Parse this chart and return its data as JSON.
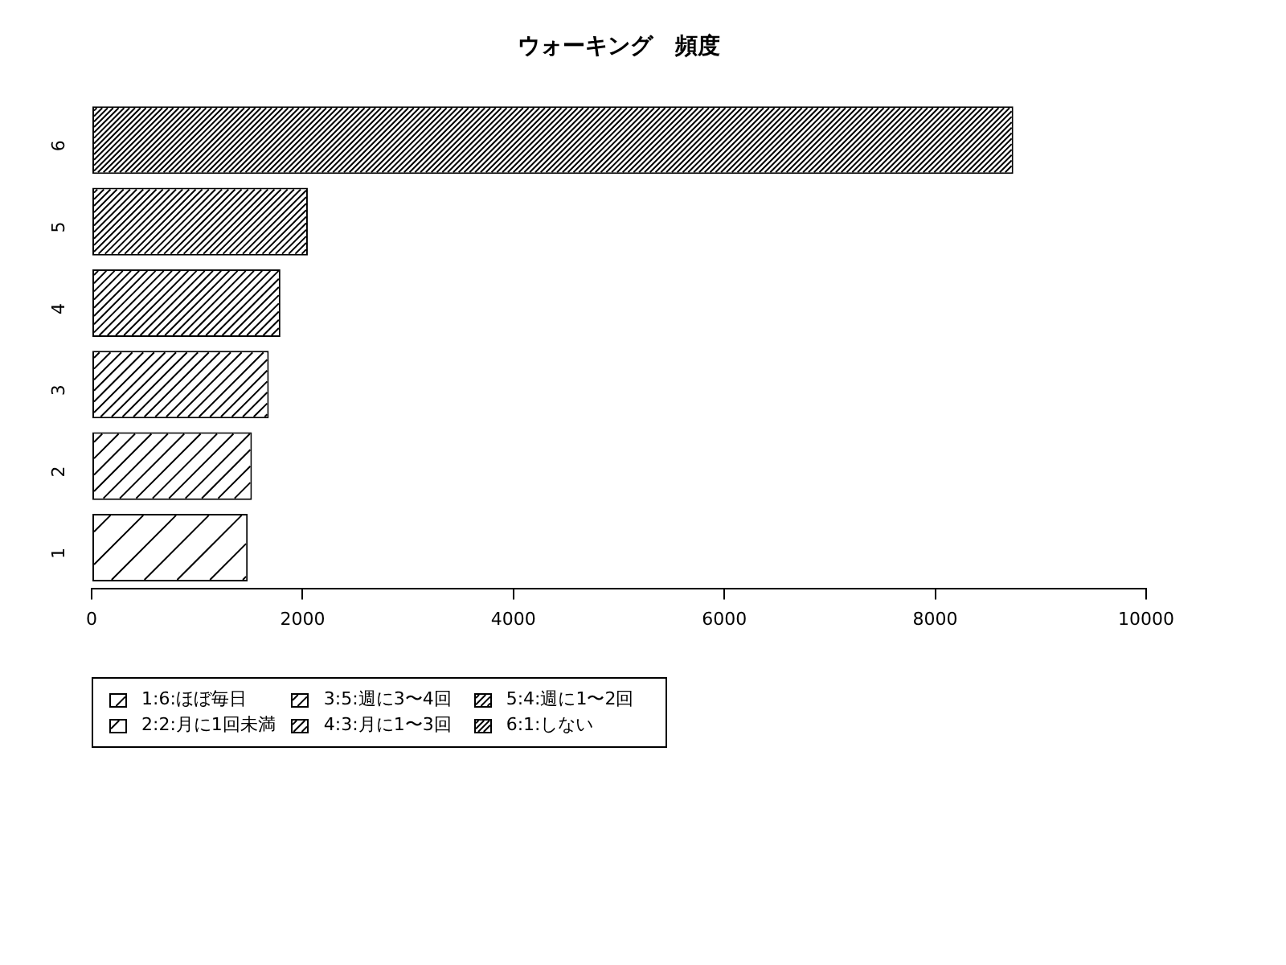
{
  "chart_data": {
    "type": "bar",
    "title": "ウォーキング　頻度",
    "orientation": "horizontal",
    "stacked": true,
    "categories": [
      "6",
      "5",
      "4",
      "3",
      "2",
      "1"
    ],
    "series": [
      {
        "name": "1:6:ほぼ毎日",
        "color": "#000000",
        "values": [
          null,
          null,
          null,
          null,
          null,
          1480
        ]
      },
      {
        "name": "2:2:月に1回未満",
        "color": "#000000",
        "values": [
          null,
          null,
          null,
          null,
          1520,
          null
        ]
      },
      {
        "name": "3:5:週に3〜4回",
        "color": "#000000",
        "values": [
          null,
          null,
          null,
          1680,
          null,
          null
        ]
      },
      {
        "name": "4:3:月に1〜3回",
        "color": "#000000",
        "values": [
          null,
          null,
          1790,
          null,
          null,
          null
        ]
      },
      {
        "name": "5:4:週に1〜2回",
        "color": "#000000",
        "values": [
          null,
          2050,
          null,
          null,
          null,
          null
        ]
      },
      {
        "name": "6:1:しない",
        "color": "#000000",
        "values": [
          8740,
          null,
          null,
          null,
          null,
          null
        ]
      }
    ],
    "xlim": [
      0,
      10000
    ],
    "xticks": [
      0,
      2000,
      4000,
      6000,
      8000,
      10000
    ],
    "grid": false,
    "legend": "bottom left"
  }
}
